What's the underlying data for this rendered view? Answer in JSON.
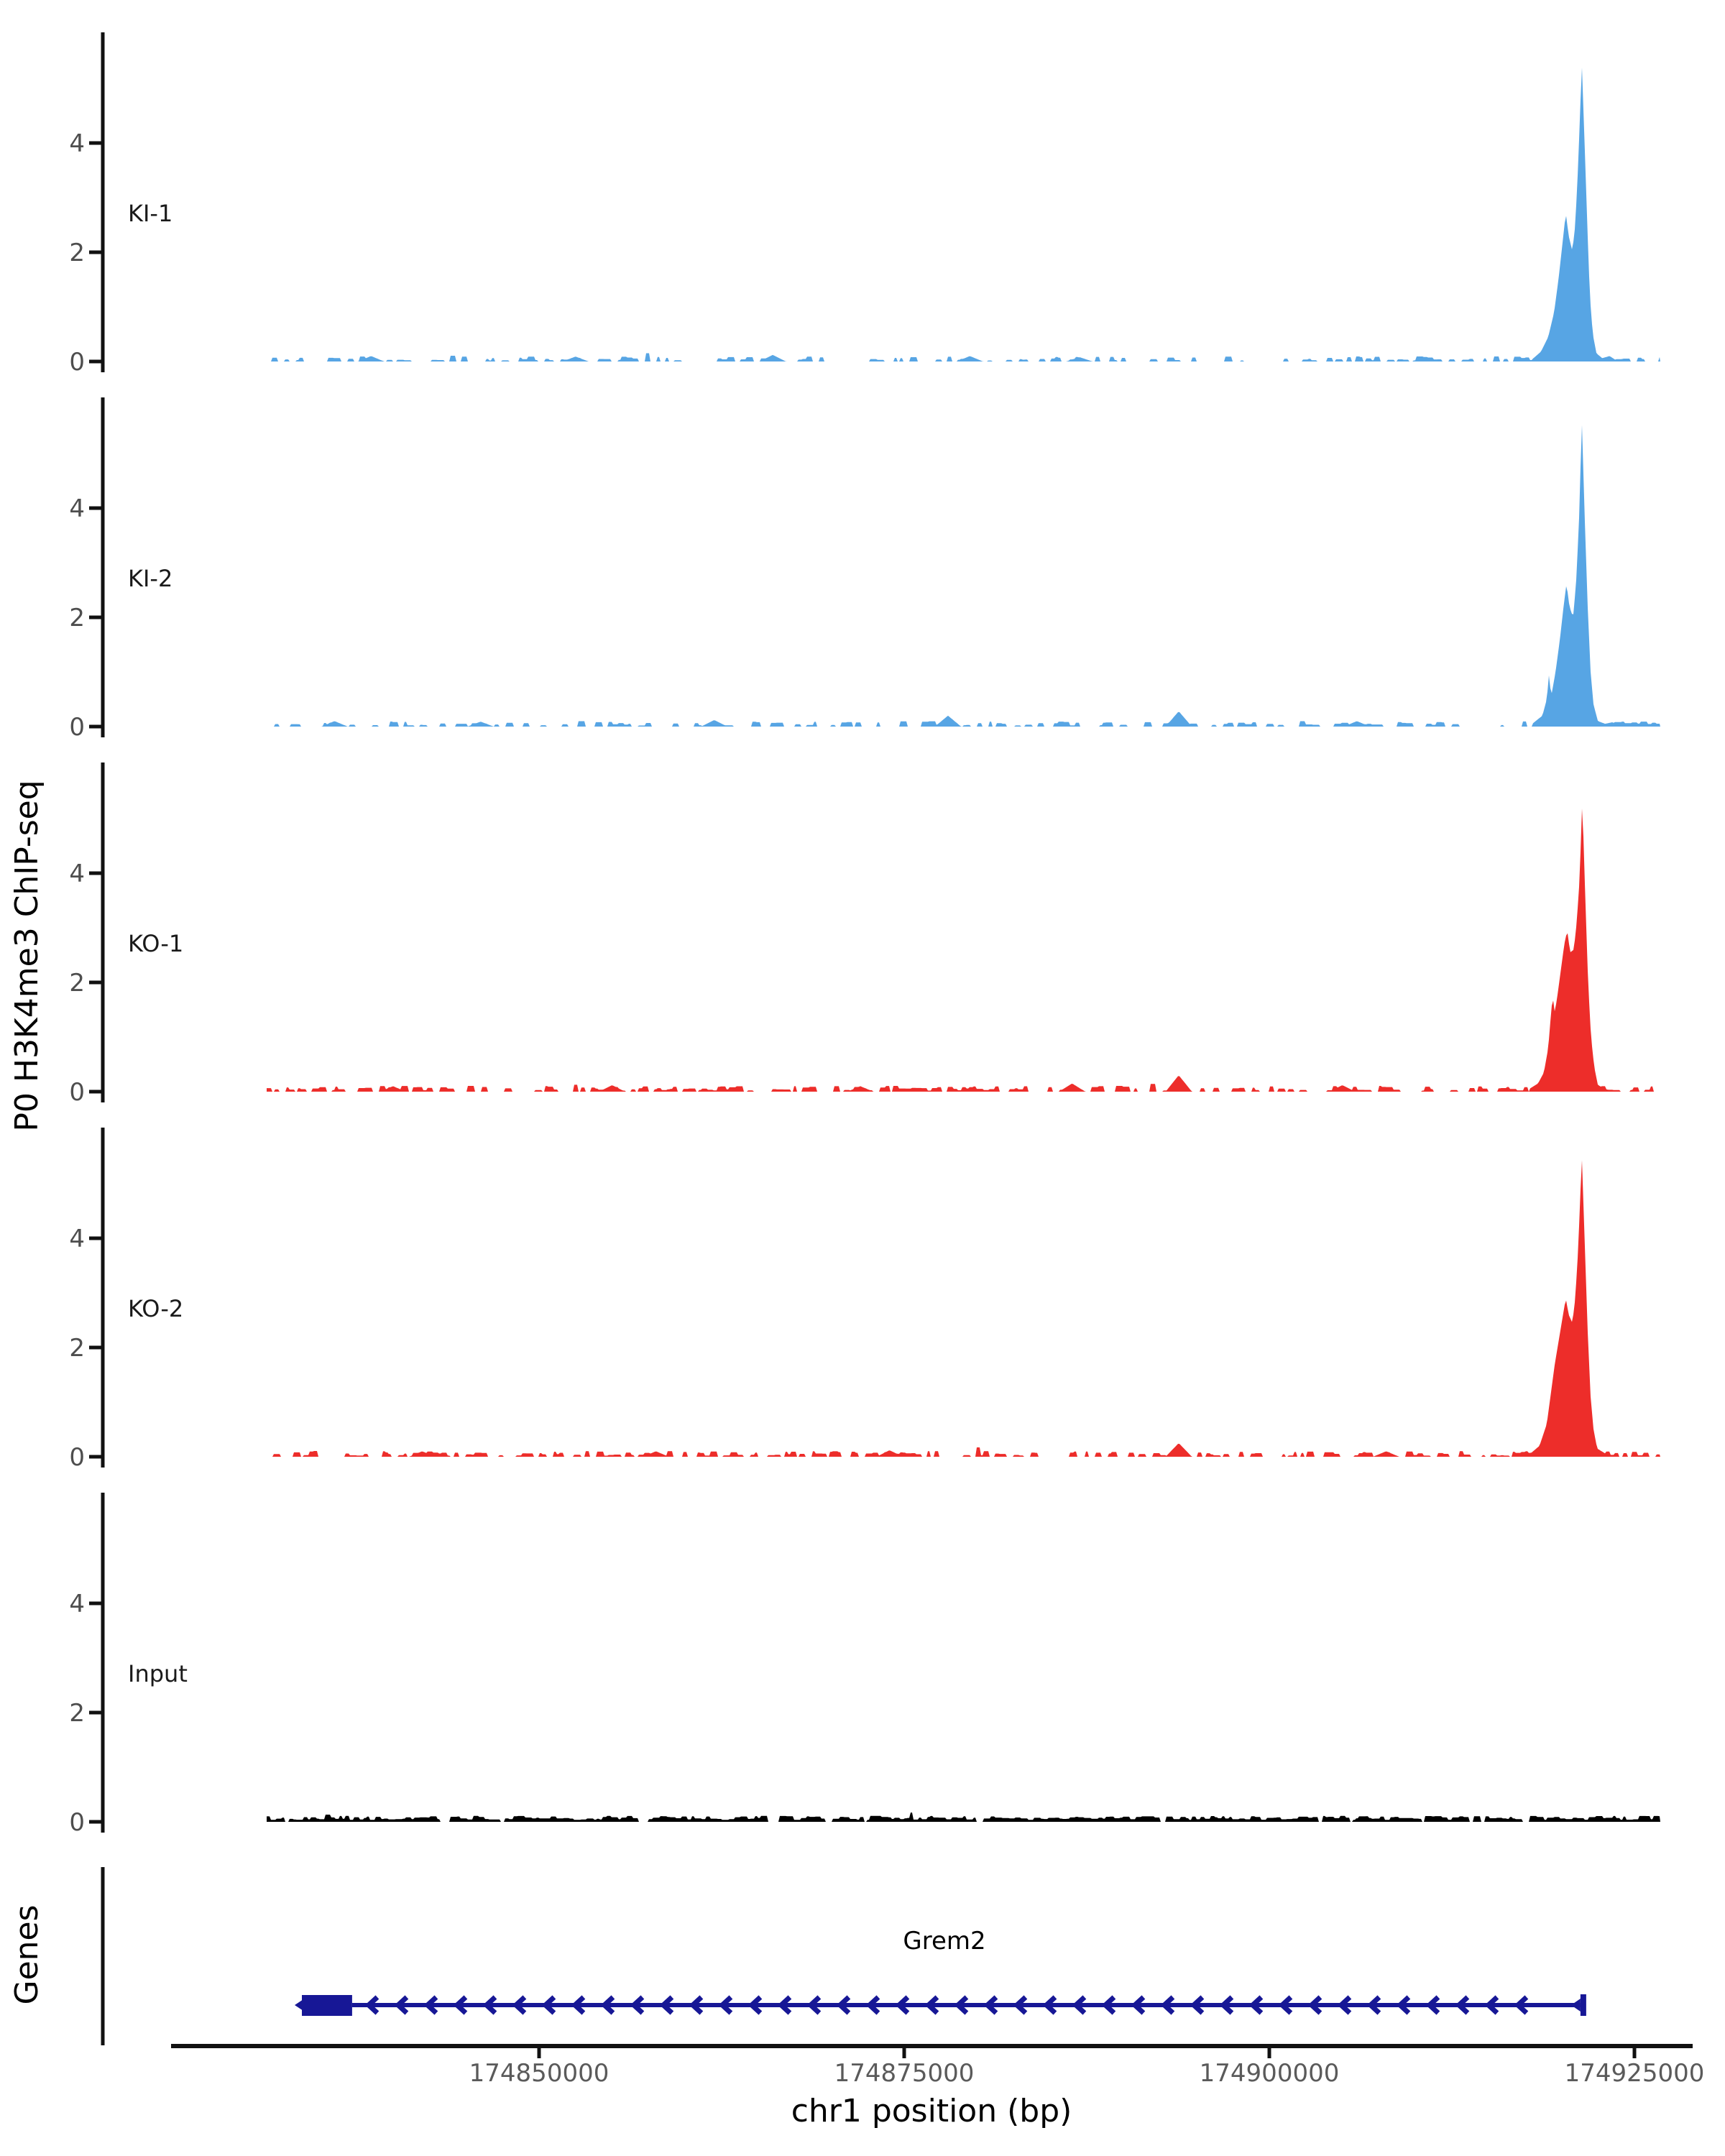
{
  "figure": {
    "y_axis_label": "P0 H3K4me3 ChIP-seq",
    "genes_axis_label": "Genes",
    "x_axis_label": "chr1 position (bp)",
    "chromosome": "chr1",
    "y_tick_labels": [
      "0",
      "2",
      "4"
    ],
    "x_ticks": [
      {
        "bp": 174850000,
        "label": "174850000"
      },
      {
        "bp": 174875000,
        "label": "174875000"
      },
      {
        "bp": 174900000,
        "label": "174900000"
      },
      {
        "bp": 174925000,
        "label": "174925000"
      }
    ],
    "gene": {
      "name": "Grem2",
      "strand": "-",
      "start_bp": 174833760,
      "end_bp": 174921500,
      "box_start_bp": 174833760,
      "box_end_bp": 174837200,
      "color": "#171796"
    },
    "colors": {
      "ki_blue": "#57A5E4",
      "ko_red": "#ED2D2A",
      "input_black": "#000000",
      "gene_navy": "#171796",
      "axis_black": "#111111",
      "ytick_gray": "#4e4e4e",
      "xtick_gray": "#5a5a5a"
    }
  },
  "chart_data": {
    "type": "area",
    "title": "",
    "xlabel": "chr1 position (bp)",
    "ylabel": "P0 H3K4me3 ChIP-seq",
    "x_range_bp": [
      174831350,
      174926770
    ],
    "ylim": [
      0,
      6
    ],
    "y_ticks": [
      0,
      2,
      4
    ],
    "x_tick_values": [
      174850000,
      174875000,
      174900000,
      174925000
    ],
    "legend": "none",
    "grid": false,
    "tracks": [
      {
        "label": "KI-1",
        "color": "#57A5E4",
        "peak_summit_bp": 174921400,
        "peak_max": 5.45,
        "peak_profile": [
          [
            174918000,
            0.04
          ],
          [
            174918600,
            0.18
          ],
          [
            174919100,
            0.45
          ],
          [
            174919500,
            0.9
          ],
          [
            174919800,
            1.5
          ],
          [
            174920050,
            2.1
          ],
          [
            174920300,
            2.72
          ],
          [
            174920500,
            2.3
          ],
          [
            174920750,
            2.02
          ],
          [
            174920950,
            2.5
          ],
          [
            174921150,
            3.6
          ],
          [
            174921400,
            5.45
          ],
          [
            174921600,
            3.9
          ],
          [
            174921800,
            2.3
          ],
          [
            174921950,
            1.2
          ],
          [
            174922150,
            0.5
          ],
          [
            174922400,
            0.15
          ],
          [
            174922800,
            0.06
          ],
          [
            174923300,
            0.1
          ],
          [
            174923700,
            0.03
          ],
          [
            174924300,
            0.05
          ],
          [
            174924700,
            0
          ]
        ],
        "bumps": [
          [
            174838500,
            0.1
          ],
          [
            174852500,
            0.09
          ],
          [
            174866000,
            0.12
          ],
          [
            174879500,
            0.1
          ],
          [
            174887000,
            0.08
          ]
        ],
        "noise": {
          "seed": 11,
          "zero_prob": 0.55,
          "base": 0.018,
          "amp": 0.075
        }
      },
      {
        "label": "KI-2",
        "color": "#57A5E4",
        "peak_summit_bp": 174921400,
        "peak_max": 5.6,
        "peak_profile": [
          [
            174918000,
            0.05
          ],
          [
            174918700,
            0.2
          ],
          [
            174919000,
            0.5
          ],
          [
            174919150,
            0.95
          ],
          [
            174919300,
            0.55
          ],
          [
            174919600,
            1.0
          ],
          [
            174919900,
            1.6
          ],
          [
            174920150,
            2.2
          ],
          [
            174920350,
            2.62
          ],
          [
            174920550,
            2.2
          ],
          [
            174920800,
            2.0
          ],
          [
            174921000,
            2.6
          ],
          [
            174921200,
            3.7
          ],
          [
            174921400,
            5.6
          ],
          [
            174921600,
            3.8
          ],
          [
            174921800,
            2.2
          ],
          [
            174922000,
            1.0
          ],
          [
            174922200,
            0.4
          ],
          [
            174922500,
            0.1
          ],
          [
            174923000,
            0.05
          ],
          [
            174923500,
            0.08
          ],
          [
            174924000,
            0
          ]
        ],
        "bumps": [
          [
            174836000,
            0.1
          ],
          [
            174846000,
            0.09
          ],
          [
            174862000,
            0.12
          ],
          [
            174878000,
            0.2
          ],
          [
            174893800,
            0.28
          ],
          [
            174906000,
            0.1
          ]
        ],
        "noise": {
          "seed": 22,
          "zero_prob": 0.52,
          "base": 0.02,
          "amp": 0.08
        }
      },
      {
        "label": "KO-1",
        "color": "#ED2D2A",
        "peak_summit_bp": 174921430,
        "peak_max": 5.35,
        "peak_profile": [
          [
            174917800,
            0.05
          ],
          [
            174918400,
            0.15
          ],
          [
            174918800,
            0.35
          ],
          [
            174919100,
            0.8
          ],
          [
            174919250,
            1.3
          ],
          [
            174919400,
            1.75
          ],
          [
            174919550,
            1.45
          ],
          [
            174919750,
            1.8
          ],
          [
            174920000,
            2.3
          ],
          [
            174920200,
            2.7
          ],
          [
            174920400,
            2.95
          ],
          [
            174920600,
            2.55
          ],
          [
            174920850,
            2.6
          ],
          [
            174921050,
            3.1
          ],
          [
            174921250,
            3.9
          ],
          [
            174921430,
            5.35
          ],
          [
            174921630,
            3.6
          ],
          [
            174921830,
            2.0
          ],
          [
            174922030,
            1.0
          ],
          [
            174922250,
            0.45
          ],
          [
            174922500,
            0.12
          ],
          [
            174923000,
            0.05
          ],
          [
            174923600,
            0
          ]
        ],
        "bumps": [
          [
            174840000,
            0.1
          ],
          [
            174855000,
            0.12
          ],
          [
            174872000,
            0.1
          ],
          [
            174886500,
            0.15
          ],
          [
            174893800,
            0.3
          ],
          [
            174905000,
            0.12
          ]
        ],
        "noise": {
          "seed": 33,
          "zero_prob": 0.45,
          "base": 0.02,
          "amp": 0.085
        }
      },
      {
        "label": "KO-2",
        "color": "#ED2D2A",
        "peak_summit_bp": 174921400,
        "peak_max": 5.5,
        "peak_profile": [
          [
            174917800,
            0.04
          ],
          [
            174918500,
            0.2
          ],
          [
            174919000,
            0.6
          ],
          [
            174919300,
            1.2
          ],
          [
            174919550,
            1.7
          ],
          [
            174919800,
            2.1
          ],
          [
            174920050,
            2.5
          ],
          [
            174920300,
            2.9
          ],
          [
            174920500,
            2.6
          ],
          [
            174920750,
            2.45
          ],
          [
            174920950,
            2.9
          ],
          [
            174921150,
            3.8
          ],
          [
            174921400,
            5.5
          ],
          [
            174921600,
            3.9
          ],
          [
            174921800,
            2.3
          ],
          [
            174922000,
            1.1
          ],
          [
            174922200,
            0.5
          ],
          [
            174922450,
            0.15
          ],
          [
            174923000,
            0.06
          ],
          [
            174923500,
            0
          ]
        ],
        "bumps": [
          [
            174842000,
            0.1
          ],
          [
            174858000,
            0.1
          ],
          [
            174874000,
            0.12
          ],
          [
            174893800,
            0.25
          ],
          [
            174908000,
            0.1
          ]
        ],
        "noise": {
          "seed": 44,
          "zero_prob": 0.45,
          "base": 0.02,
          "amp": 0.085
        }
      },
      {
        "label": "Input",
        "color": "#000000",
        "peak_summit_bp": null,
        "peak_max": 0,
        "peak_profile": [],
        "bumps": [],
        "noise": {
          "seed": 55,
          "zero_prob": 0.05,
          "base": 0.035,
          "amp": 0.075
        }
      }
    ],
    "gene_track": {
      "label": "Genes",
      "genes": [
        {
          "name": "Grem2",
          "strand": "-",
          "start_bp": 174833760,
          "end_bp": 174921500,
          "exon_box": [
            174833760,
            174837200
          ],
          "color": "#171796"
        }
      ]
    }
  }
}
